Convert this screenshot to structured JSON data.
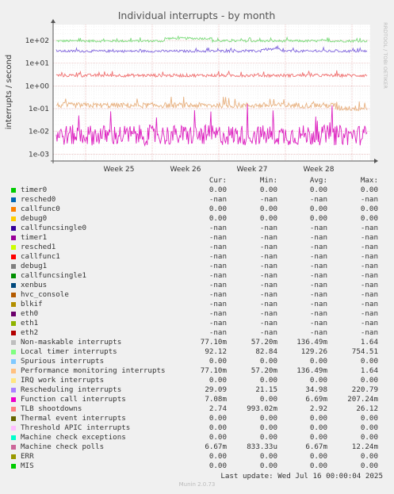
{
  "title": "Individual interrupts - by month",
  "watermark": "RRDTOOL / TOBI OETIKER",
  "chart_data": {
    "type": "line",
    "title": "Individual interrupts - by month",
    "ylabel": "interrupts / second",
    "yscale": "log",
    "ylim": [
      0.0005,
      500
    ],
    "y_ticks": [
      {
        "value": 0.001,
        "label": "1e-03"
      },
      {
        "value": 0.01,
        "label": "1e-02"
      },
      {
        "value": 0.1,
        "label": "1e-01"
      },
      {
        "value": 1,
        "label": "1e+00"
      },
      {
        "value": 10,
        "label": "1e+01"
      },
      {
        "value": 100,
        "label": "1e+02"
      }
    ],
    "x_ticks": [
      "Week 25",
      "Week 26",
      "Week 27",
      "Week 28"
    ],
    "grid": true,
    "series": [
      {
        "name": "Local timer interrupts",
        "color": "#7cdc7c",
        "level": 95,
        "spread": 0.05,
        "bumps": [
          {
            "from": 0.35,
            "to": 0.5,
            "factor": 1.3
          }
        ]
      },
      {
        "name": "Rescheduling interrupts",
        "color": "#8066dd",
        "level": 34,
        "spread": 0.05,
        "bumps": [
          {
            "from": 0.66,
            "to": 0.72,
            "factor": 1.2
          }
        ]
      },
      {
        "name": "TLB shootdowns",
        "color": "#f07373",
        "level": 2.9,
        "spread": 0.07,
        "bumps": []
      },
      {
        "name": "Non-maskable interrupts",
        "color": "#e8b282",
        "level": 0.14,
        "spread": 0.12,
        "bumps": [
          {
            "from": 0.9,
            "to": 1.0,
            "factor": 0.75
          }
        ]
      },
      {
        "name": "Function call interrupts",
        "color": "#dd22c0",
        "level": 0.0068,
        "spread": 0.45,
        "bumps": []
      }
    ]
  },
  "legend": {
    "headers": {
      "cur": "Cur:",
      "min": "Min:",
      "avg": "Avg:",
      "max": "Max:"
    },
    "rows": [
      {
        "name": "timer0",
        "color": "#00cc00",
        "cur": "0.00",
        "min": "0.00",
        "avg": "0.00",
        "max": "0.00"
      },
      {
        "name": "resched0",
        "color": "#0066b3",
        "cur": "-nan",
        "min": "-nan",
        "avg": "-nan",
        "max": "-nan"
      },
      {
        "name": "callfunc0",
        "color": "#ff8000",
        "cur": "0.00",
        "min": "0.00",
        "avg": "0.00",
        "max": "0.00"
      },
      {
        "name": "debug0",
        "color": "#ffcc00",
        "cur": "0.00",
        "min": "0.00",
        "avg": "0.00",
        "max": "0.00"
      },
      {
        "name": "callfuncsingle0",
        "color": "#330099",
        "cur": "-nan",
        "min": "-nan",
        "avg": "-nan",
        "max": "-nan"
      },
      {
        "name": "timer1",
        "color": "#990099",
        "cur": "-nan",
        "min": "-nan",
        "avg": "-nan",
        "max": "-nan"
      },
      {
        "name": "resched1",
        "color": "#ccff00",
        "cur": "-nan",
        "min": "-nan",
        "avg": "-nan",
        "max": "-nan"
      },
      {
        "name": "callfunc1",
        "color": "#ff0000",
        "cur": "-nan",
        "min": "-nan",
        "avg": "-nan",
        "max": "-nan"
      },
      {
        "name": "debug1",
        "color": "#808080",
        "cur": "-nan",
        "min": "-nan",
        "avg": "-nan",
        "max": "-nan"
      },
      {
        "name": "callfuncsingle1",
        "color": "#008f00",
        "cur": "-nan",
        "min": "-nan",
        "avg": "-nan",
        "max": "-nan"
      },
      {
        "name": "xenbus",
        "color": "#00487d",
        "cur": "-nan",
        "min": "-nan",
        "avg": "-nan",
        "max": "-nan"
      },
      {
        "name": "hvc_console",
        "color": "#b35a00",
        "cur": "-nan",
        "min": "-nan",
        "avg": "-nan",
        "max": "-nan"
      },
      {
        "name": "blkif",
        "color": "#b38f00",
        "cur": "-nan",
        "min": "-nan",
        "avg": "-nan",
        "max": "-nan"
      },
      {
        "name": "eth0",
        "color": "#6b006b",
        "cur": "-nan",
        "min": "-nan",
        "avg": "-nan",
        "max": "-nan"
      },
      {
        "name": "eth1",
        "color": "#8fb300",
        "cur": "-nan",
        "min": "-nan",
        "avg": "-nan",
        "max": "-nan"
      },
      {
        "name": "eth2",
        "color": "#b30000",
        "cur": "-nan",
        "min": "-nan",
        "avg": "-nan",
        "max": "-nan"
      },
      {
        "name": "Non-maskable interrupts",
        "color": "#bebebe",
        "cur": "77.10m",
        "min": "57.20m",
        "avg": "136.49m",
        "max": "1.64"
      },
      {
        "name": "Local timer interrupts",
        "color": "#80ff80",
        "cur": "92.12",
        "min": "82.84",
        "avg": "129.26",
        "max": "754.51"
      },
      {
        "name": "Spurious interrupts",
        "color": "#80c9ff",
        "cur": "0.00",
        "min": "0.00",
        "avg": "0.00",
        "max": "0.00"
      },
      {
        "name": "Performance monitoring interrupts",
        "color": "#ffc080",
        "cur": "77.10m",
        "min": "57.20m",
        "avg": "136.49m",
        "max": "1.64"
      },
      {
        "name": "IRQ work interrupts",
        "color": "#ffe680",
        "cur": "0.00",
        "min": "0.00",
        "avg": "0.00",
        "max": "0.00"
      },
      {
        "name": "Rescheduling interrupts",
        "color": "#aa80ff",
        "cur": "29.09",
        "min": "21.15",
        "avg": "34.98",
        "max": "220.79"
      },
      {
        "name": "Function call interrupts",
        "color": "#ee00cc",
        "cur": "7.08m",
        "min": "0.00",
        "avg": "6.69m",
        "max": "207.24m"
      },
      {
        "name": "TLB shootdowns",
        "color": "#ff8080",
        "cur": "2.74",
        "min": "993.02m",
        "avg": "2.92",
        "max": "26.12"
      },
      {
        "name": "Thermal event interrupts",
        "color": "#666600",
        "cur": "0.00",
        "min": "0.00",
        "avg": "0.00",
        "max": "0.00"
      },
      {
        "name": "Threshold APIC interrupts",
        "color": "#ffbfff",
        "cur": "0.00",
        "min": "0.00",
        "avg": "0.00",
        "max": "0.00"
      },
      {
        "name": "Machine check exceptions",
        "color": "#00ffcc",
        "cur": "0.00",
        "min": "0.00",
        "avg": "0.00",
        "max": "0.00"
      },
      {
        "name": "Machine check polls",
        "color": "#cc6699",
        "cur": "6.67m",
        "min": "833.33u",
        "avg": "6.67m",
        "max": "12.24m"
      },
      {
        "name": "ERR",
        "color": "#999900",
        "cur": "0.00",
        "min": "0.00",
        "avg": "0.00",
        "max": "0.00"
      },
      {
        "name": "MIS",
        "color": "#00cc00",
        "cur": "0.00",
        "min": "0.00",
        "avg": "0.00",
        "max": "0.00"
      }
    ]
  },
  "last_update": "Last update: Wed Jul 16 00:00:04 2025",
  "footer": "Munin 2.0.73"
}
